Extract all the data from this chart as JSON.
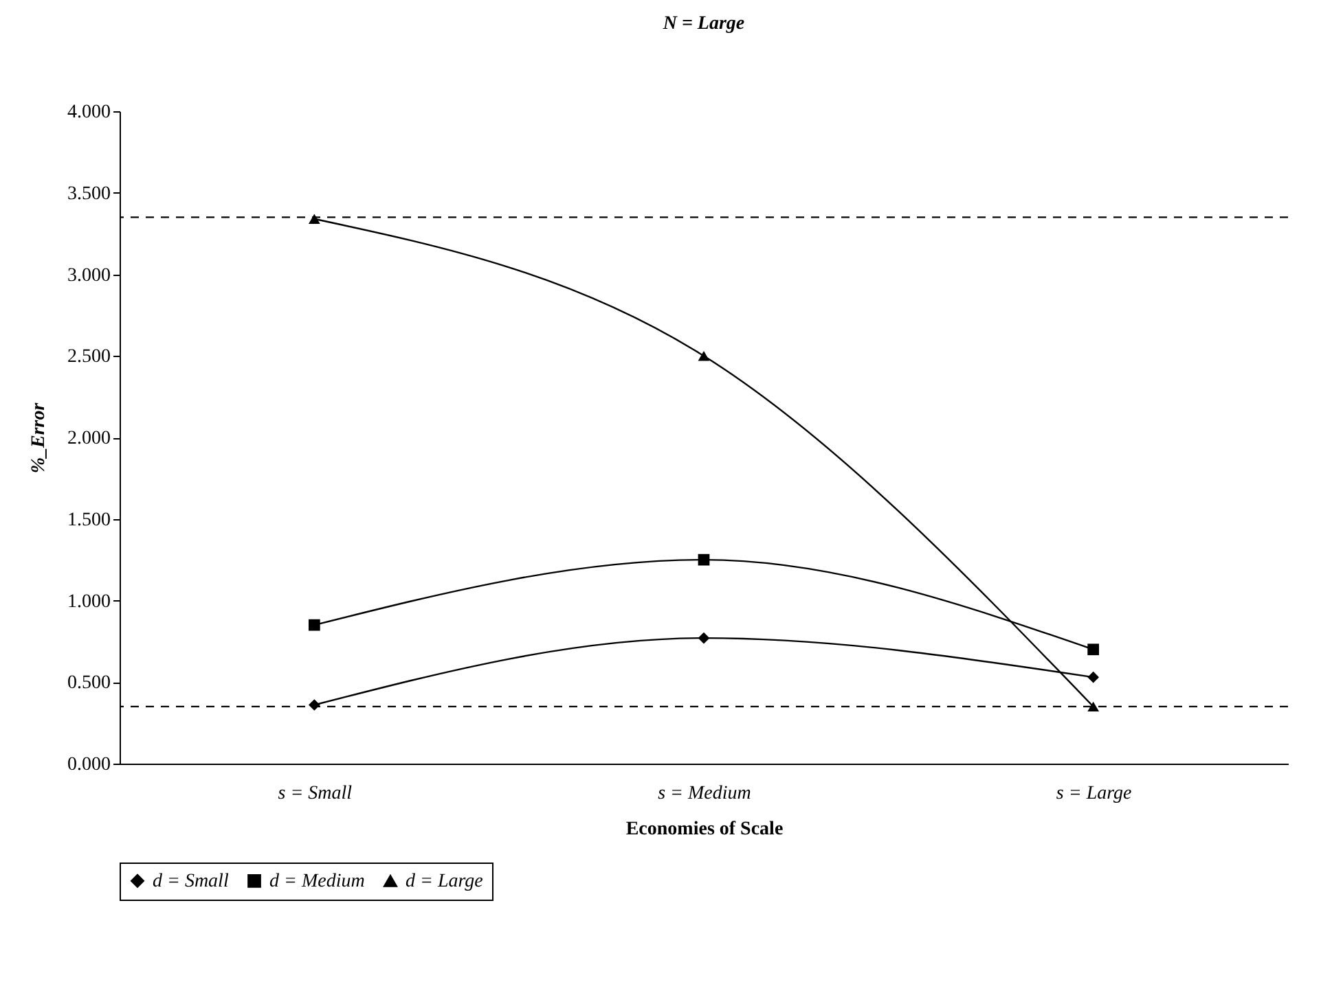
{
  "chart_data": {
    "type": "line",
    "title": "N = Large",
    "xlabel": "Economies of Scale",
    "ylabel": "%_Error",
    "categories": [
      "s = Small",
      "s = Medium",
      "s = Large"
    ],
    "series": [
      {
        "name": "d = Small",
        "color": "#000000",
        "marker": "diamond",
        "values": [
          0.36,
          0.77,
          0.53
        ]
      },
      {
        "name": "d = Medium",
        "color": "#000000",
        "marker": "square",
        "values": [
          0.85,
          1.25,
          0.7
        ]
      },
      {
        "name": "d = Large",
        "color": "#000000",
        "marker": "triangle",
        "values": [
          3.34,
          2.5,
          0.35
        ]
      }
    ],
    "ylim": [
      0,
      4
    ],
    "yticks": [
      {
        "value": 0,
        "label": "0.000"
      },
      {
        "value": 0.5,
        "label": "0.500"
      },
      {
        "value": 1,
        "label": "1.000"
      },
      {
        "value": 1.5,
        "label": "1.500"
      },
      {
        "value": 2,
        "label": "2.000"
      },
      {
        "value": 2.5,
        "label": "2.500"
      },
      {
        "value": 3,
        "label": "3.000"
      },
      {
        "value": 3.5,
        "label": "3.500"
      },
      {
        "value": 4,
        "label": "4.000"
      }
    ],
    "ref_lines": [
      {
        "axis": "y",
        "value": 3.35,
        "line_style": "dashed"
      },
      {
        "axis": "y",
        "value": 0.35,
        "line_style": "dashed"
      }
    ],
    "grid": false,
    "legend": "bottom",
    "line_style": "solid"
  }
}
